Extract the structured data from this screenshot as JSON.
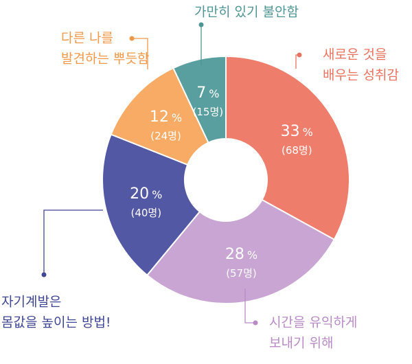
{
  "chart_data": {
    "type": "pie",
    "style": "donut",
    "categories": [
      "새로운 것을 배우는 성취감",
      "시간을 유익하게 보내기 위해",
      "자기계발은 몸값을 높이는 방법!",
      "다른 나를 발견하는 뿌듯함",
      "가만히 있기 불안함"
    ],
    "values": [
      33,
      28,
      20,
      12,
      7
    ],
    "counts": [
      68,
      57,
      40,
      24,
      15
    ],
    "slices": [
      {
        "label_lines": [
          "새로운 것을",
          "배우는 성취감"
        ],
        "percent_text": "33",
        "count_text": "(68명)",
        "color": "#ef7d6b"
      },
      {
        "label_lines": [
          "시간을 유익하게",
          "보내기 위해"
        ],
        "percent_text": "28",
        "count_text": "(57명)",
        "color": "#c9a5d3"
      },
      {
        "label_lines": [
          "자기계발은",
          "몸값을 높이는 방법!"
        ],
        "percent_text": "20",
        "count_text": "(40명)",
        "color": "#5258a4"
      },
      {
        "label_lines": [
          "다른 나를",
          "발견하는 뿌듯함"
        ],
        "percent_text": "12",
        "count_text": "(24명)",
        "color": "#f7ab64"
      },
      {
        "label_lines": [
          "가만히 있기 불안함"
        ],
        "percent_text": "7",
        "count_text": "(15명)",
        "color": "#5a9f9f"
      }
    ],
    "percent_unit": "%",
    "label_colors": [
      "#e9735f",
      "#b98ac6",
      "#3f4693",
      "#f1994a",
      "#4f9595"
    ]
  }
}
